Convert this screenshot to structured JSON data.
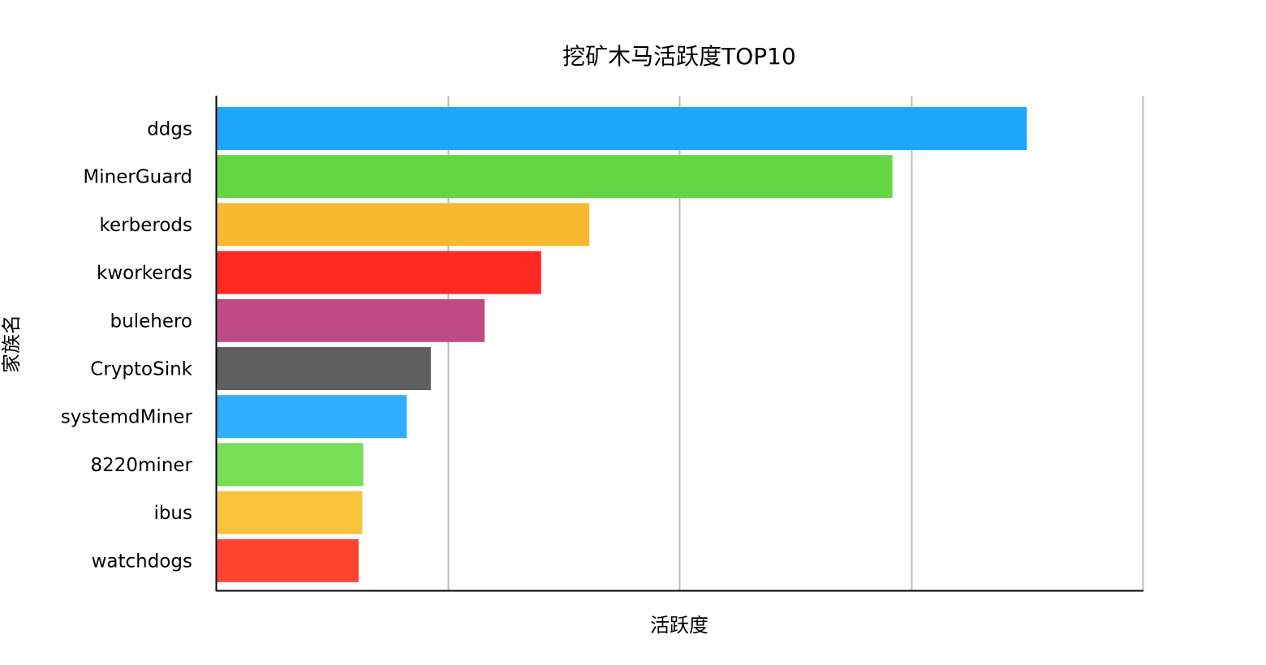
{
  "chart_data": {
    "type": "bar",
    "orientation": "horizontal",
    "title": "挖矿木马活跃度TOP10",
    "xlabel": "活跃度",
    "ylabel": "家族名",
    "categories": [
      "ddgs",
      "MinerGuard",
      "kerberods",
      "kworkerds",
      "bulehero",
      "CryptoSink",
      "systemdMiner",
      "8220miner",
      "ibus",
      "watchdogs"
    ],
    "values": [
      0.875,
      0.73,
      0.403,
      0.351,
      0.29,
      0.232,
      0.206,
      0.159,
      0.158,
      0.154
    ],
    "xlim": [
      0,
      1
    ],
    "grid": true,
    "legend": "none",
    "colors": [
      "#1EA5FC",
      "#64D645",
      "#F7B92D",
      "#FE2921",
      "#BF4B84",
      "#5F5F5F",
      "#2FAEFD",
      "#77DE55",
      "#F8C33B",
      "#FE4531"
    ]
  }
}
